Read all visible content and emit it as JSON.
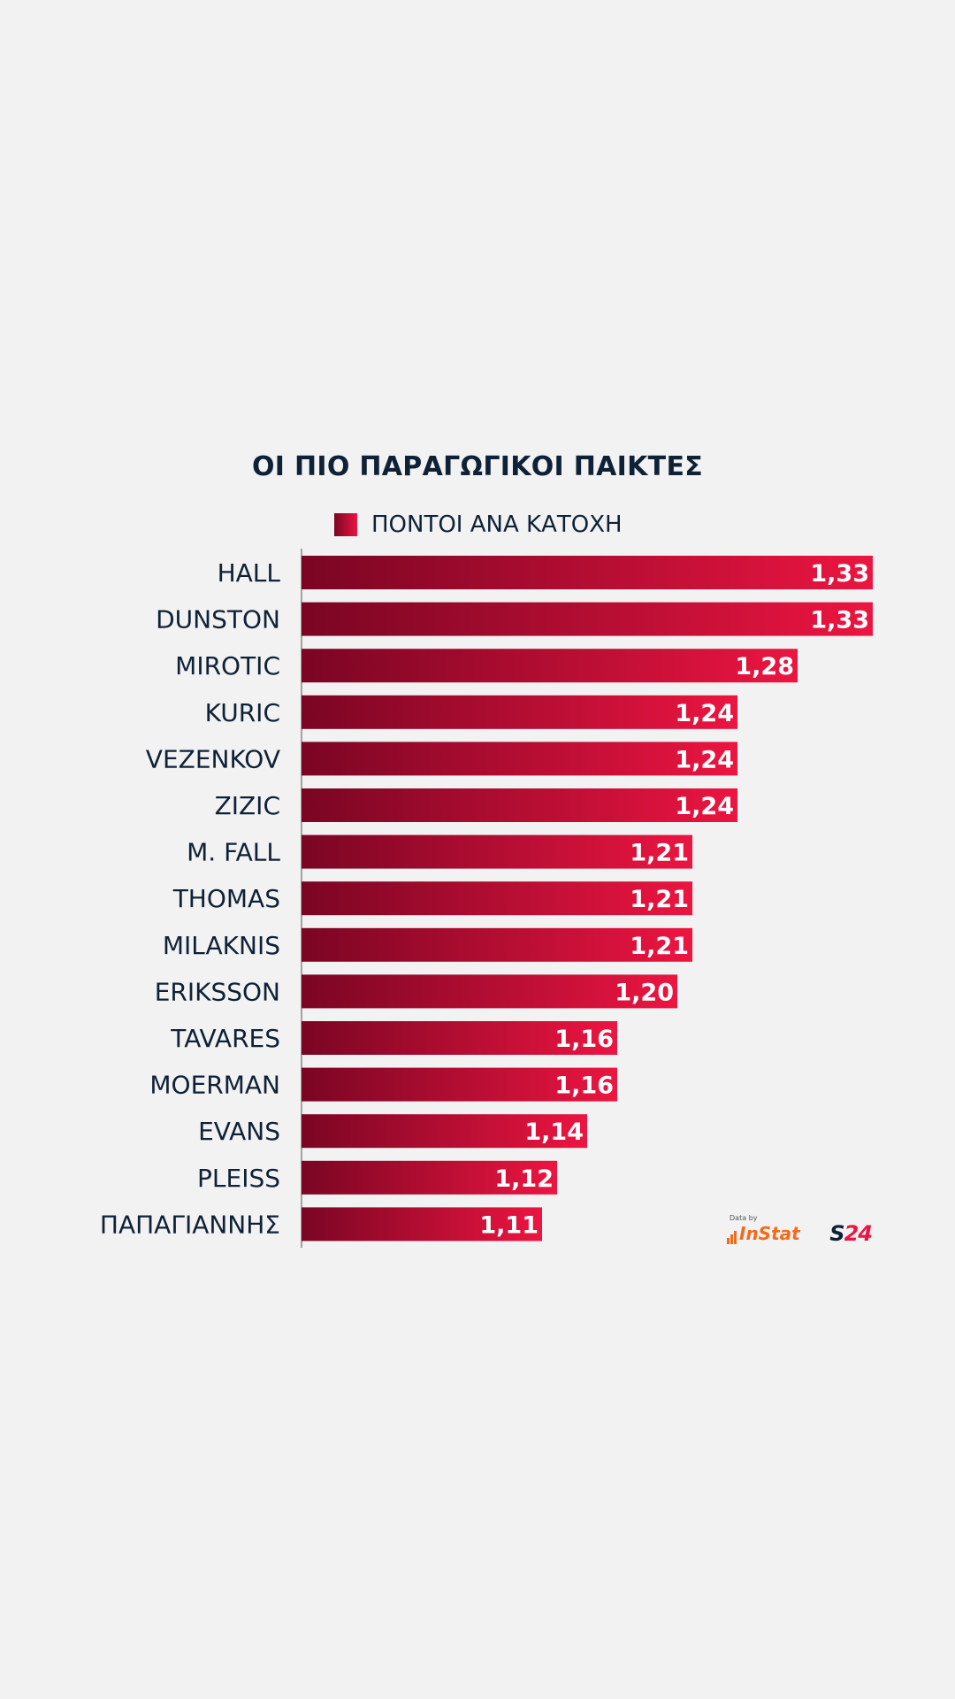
{
  "chart_data": {
    "type": "bar",
    "orientation": "horizontal",
    "title": "ΟΙ ΠΙΟ ΠΑΡΑΓΩΓΙΚΟΙ ΠΑΙΚΤΕΣ",
    "legend": "top",
    "series": [
      {
        "name": "ΠΟΝΤΟΙ ΑΝΑ ΚΑΤΟΧΗ",
        "values": [
          1.33,
          1.33,
          1.28,
          1.24,
          1.24,
          1.24,
          1.21,
          1.21,
          1.21,
          1.2,
          1.16,
          1.16,
          1.14,
          1.12,
          1.11
        ]
      }
    ],
    "categories": [
      "HALL",
      "DUNSTON",
      "MIROTIC",
      "KURIC",
      "VEZENKOV",
      "ZIZIC",
      "M. FALL",
      "THOMAS",
      "MILAKNIS",
      "ERIKSSON",
      "TAVARES",
      "MOERMAN",
      "EVANS",
      "PLEISS",
      "ΠΑΠΑΓΙΑΝΝΗΣ"
    ],
    "value_labels": [
      "1,33",
      "1,33",
      "1,28",
      "1,24",
      "1,24",
      "1,24",
      "1,21",
      "1,21",
      "1,21",
      "1,20",
      "1,16",
      "1,16",
      "1,14",
      "1,12",
      "1,11"
    ],
    "xlim": [
      0.95,
      1.33
    ],
    "colors": {
      "bar_start": "#7a0523",
      "bar_end": "#ec1541",
      "text": "#0f2136",
      "value_text": "#ffffff"
    }
  },
  "logo": {
    "data_by": "Data by",
    "instat": "InStat",
    "s24_s": "S",
    "s24_num": "24"
  }
}
